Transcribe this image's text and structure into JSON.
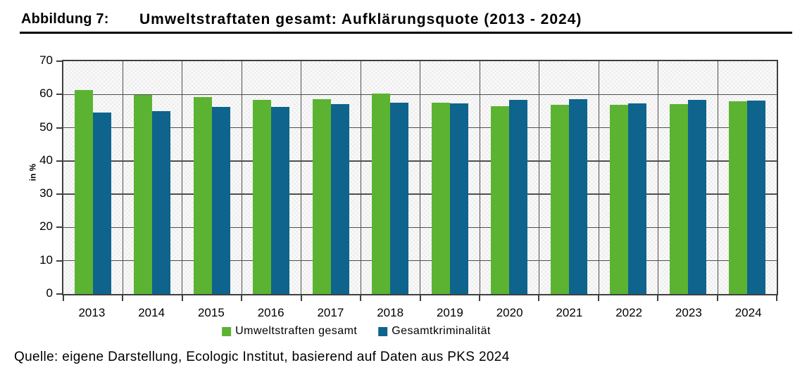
{
  "title": {
    "label": "Abbildung 7:",
    "text": "Umweltstraftaten gesamt: Aufklärungsquote (2013 - 2024)"
  },
  "source": "Quelle: eigene Darstellung, Ecologic Institut, basierend auf Daten aus PKS 2024",
  "chart_data": {
    "type": "bar",
    "title": "Umweltstraftaten gesamt: Aufklärungsquote (2013 - 2024)",
    "categories": [
      "2013",
      "2014",
      "2015",
      "2016",
      "2017",
      "2018",
      "2019",
      "2020",
      "2021",
      "2022",
      "2023",
      "2024"
    ],
    "series": [
      {
        "name": "Umweltstraften gesamt",
        "color": "#5BB331",
        "values": [
          61.4,
          59.9,
          59.2,
          58.4,
          58.5,
          60.3,
          57.6,
          56.4,
          56.9,
          56.8,
          57.0,
          58.0
        ]
      },
      {
        "name": "Gesamtkriminalität",
        "color": "#0E648C",
        "values": [
          54.5,
          55.0,
          56.3,
          56.2,
          57.1,
          57.6,
          57.3,
          58.4,
          58.6,
          57.3,
          58.3,
          58.1
        ]
      }
    ],
    "xlabel": "",
    "ylabel": "in %",
    "ylim": [
      0,
      70
    ],
    "ytick_step": 10,
    "grid": true,
    "legend_position": "bottom"
  }
}
